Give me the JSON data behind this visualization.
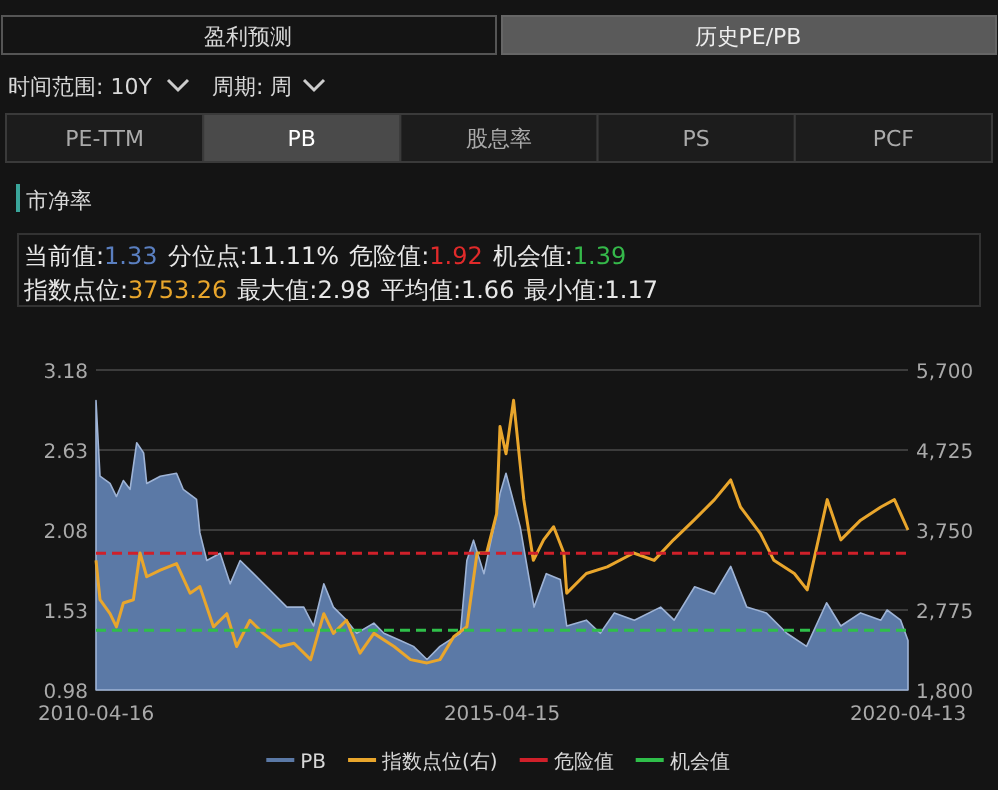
{
  "chart_data": {
    "type": "line",
    "title": "市净率",
    "annotations": [
      "盈利预测",
      "历史PE/PB",
      "时间范围: 10Y",
      "周期: 周",
      "PE-TTM",
      "PB",
      "股息率",
      "PS",
      "PCF",
      "当前值:1.33",
      "分位点:11.11%",
      "危险值:1.92",
      "机会值:1.39",
      "指数点位:3753.26",
      "最大值:2.98",
      "平均值:1.66",
      "最小值:1.17"
    ],
    "xlim": [
      "2010-04-16",
      "2020-04-13"
    ],
    "xticks": [
      {
        "value": "2010-04-16",
        "label": "2010-04-16"
      },
      {
        "value": "2015-04-15",
        "label": "2015-04-15"
      },
      {
        "value": "2020-04-13",
        "label": "2020-04-13"
      }
    ],
    "ylim": [
      0.98,
      3.18
    ],
    "yticks": [
      0.98,
      1.53,
      2.08,
      2.63,
      3.18
    ],
    "y2lim": [
      1800,
      5700
    ],
    "y2ticks": [
      {
        "value": 1800,
        "label": "1,800"
      },
      {
        "value": 2775,
        "label": "2,775"
      },
      {
        "value": 3750,
        "label": "3,750"
      },
      {
        "value": 4725,
        "label": "4,725"
      },
      {
        "value": 5700,
        "label": "5,700"
      }
    ],
    "grid": "y",
    "legend": "bottom",
    "series": [
      {
        "name": "PB",
        "type": "area",
        "color": "#5b79a6",
        "x": [
          "2010-04-16",
          "2010-05-04",
          "2010-06-18",
          "2010-07-17",
          "2010-08-17",
          "2010-09-16",
          "2010-10-16",
          "2010-11-16",
          "2010-11-30",
          "2011-01-30",
          "2011-04-13",
          "2011-05-13",
          "2011-07-12",
          "2011-07-27",
          "2011-08-27",
          "2011-10-26",
          "2011-12-10",
          "2012-01-24",
          "2012-03-24",
          "2012-05-22",
          "2012-08-21",
          "2012-11-05",
          "2012-12-19",
          "2013-02-03",
          "2013-03-18",
          "2013-05-16",
          "2013-07-01",
          "2013-09-16",
          "2013-10-31",
          "2014-01-13",
          "2014-03-13",
          "2014-05-13",
          "2014-07-10",
          "2014-10-10",
          "2014-11-08",
          "2014-12-08",
          "2015-01-24",
          "2015-03-22",
          "2015-04-06",
          "2015-05-03",
          "2015-07-06",
          "2015-09-06",
          "2015-10-31",
          "2016-01-02",
          "2016-01-31",
          "2016-04-28",
          "2016-06-30",
          "2016-09-01",
          "2016-11-30",
          "2017-03-28",
          "2017-05-28",
          "2017-08-28",
          "2017-11-25",
          "2018-02-06",
          "2018-04-19",
          "2018-07-16",
          "2018-10-16",
          "2019-01-13",
          "2019-04-13",
          "2019-06-16",
          "2019-09-13",
          "2019-12-13",
          "2020-01-10",
          "2020-03-11",
          "2020-04-13"
        ],
        "values": [
          2.97,
          2.45,
          2.4,
          2.31,
          2.42,
          2.36,
          2.68,
          2.61,
          2.4,
          2.45,
          2.47,
          2.36,
          2.29,
          2.06,
          1.87,
          1.92,
          1.71,
          1.87,
          1.78,
          1.69,
          1.55,
          1.55,
          1.42,
          1.71,
          1.55,
          1.46,
          1.37,
          1.44,
          1.37,
          1.32,
          1.28,
          1.19,
          1.28,
          1.37,
          1.87,
          2.01,
          1.78,
          2.19,
          2.33,
          2.47,
          2.1,
          1.55,
          1.78,
          1.74,
          1.42,
          1.46,
          1.37,
          1.51,
          1.46,
          1.55,
          1.46,
          1.69,
          1.64,
          1.83,
          1.55,
          1.51,
          1.37,
          1.28,
          1.58,
          1.42,
          1.51,
          1.46,
          1.53,
          1.46,
          1.32
        ]
      },
      {
        "name": "指数点位(右)",
        "type": "line",
        "axis": "y2",
        "color": "#e9a62c",
        "x": [
          "2010-04-16",
          "2010-05-04",
          "2010-06-18",
          "2010-07-17",
          "2010-08-17",
          "2010-10-01",
          "2010-10-31",
          "2010-11-30",
          "2011-01-30",
          "2011-04-13",
          "2011-06-13",
          "2011-07-27",
          "2011-09-26",
          "2011-11-25",
          "2012-01-08",
          "2012-03-08",
          "2012-05-07",
          "2012-07-22",
          "2012-09-22",
          "2012-12-06",
          "2013-02-03",
          "2013-03-18",
          "2013-05-16",
          "2013-07-16",
          "2013-09-16",
          "2013-12-16",
          "2014-02-28",
          "2014-05-13",
          "2014-07-10",
          "2014-09-10",
          "2014-11-08",
          "2014-12-24",
          "2015-02-05",
          "2015-03-22",
          "2015-04-06",
          "2015-05-03",
          "2015-06-06",
          "2015-07-22",
          "2015-09-03",
          "2015-10-19",
          "2015-12-03",
          "2016-01-18",
          "2016-01-31",
          "2016-04-28",
          "2016-07-31",
          "2016-11-27",
          "2017-02-27",
          "2017-05-25",
          "2017-08-25",
          "2017-11-25",
          "2018-02-06",
          "2018-03-22",
          "2018-06-19",
          "2018-08-19",
          "2018-11-19",
          "2019-01-16",
          "2019-04-16",
          "2019-06-16",
          "2019-09-13",
          "2019-12-13",
          "2020-02-12",
          "2020-03-11",
          "2020-04-13"
        ],
        "values": [
          3380,
          2900,
          2730,
          2570,
          2860,
          2900,
          3470,
          3180,
          3260,
          3340,
          2980,
          3060,
          2570,
          2730,
          2330,
          2650,
          2490,
          2330,
          2370,
          2170,
          2730,
          2490,
          2650,
          2250,
          2490,
          2330,
          2170,
          2130,
          2170,
          2450,
          2570,
          3470,
          3470,
          3950,
          5010,
          4680,
          5330,
          4120,
          3380,
          3630,
          3790,
          3470,
          2980,
          3220,
          3300,
          3470,
          3380,
          3630,
          3870,
          4120,
          4360,
          4030,
          3710,
          3380,
          3220,
          3020,
          4120,
          3630,
          3870,
          4030,
          4120,
          3950,
          3750
        ]
      },
      {
        "name": "危险值",
        "type": "line",
        "color": "#d0202a",
        "line_style": "dashed",
        "x": [
          "2010-04-16",
          "2020-04-13"
        ],
        "values": [
          1.92,
          1.92
        ]
      },
      {
        "name": "机会值",
        "type": "line",
        "color": "#2fbf4a",
        "line_style": "dashed",
        "x": [
          "2010-04-16",
          "2020-04-13"
        ],
        "values": [
          1.39,
          1.39
        ]
      }
    ]
  }
}
